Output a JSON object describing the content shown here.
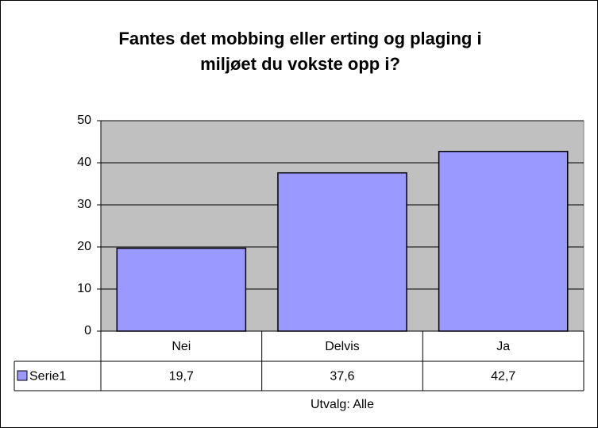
{
  "chart_data": {
    "type": "bar",
    "title": [
      "Fantes det mobbing eller erting og plaging i",
      "miljøet du vokste opp i?"
    ],
    "categories": [
      "Nei",
      "Delvis",
      "Ja"
    ],
    "series": [
      {
        "name": "Serie1",
        "color": "#9999ff",
        "values": [
          19.7,
          37.6,
          42.7
        ],
        "value_labels": [
          "19,7",
          "37,6",
          "42,7"
        ]
      }
    ],
    "x_label": "Utvalg: Alle",
    "ylim": [
      0,
      50
    ],
    "yticks": [
      0,
      10,
      20,
      30,
      40,
      50
    ],
    "grid": true,
    "plot_background": "#c0c0c0"
  }
}
